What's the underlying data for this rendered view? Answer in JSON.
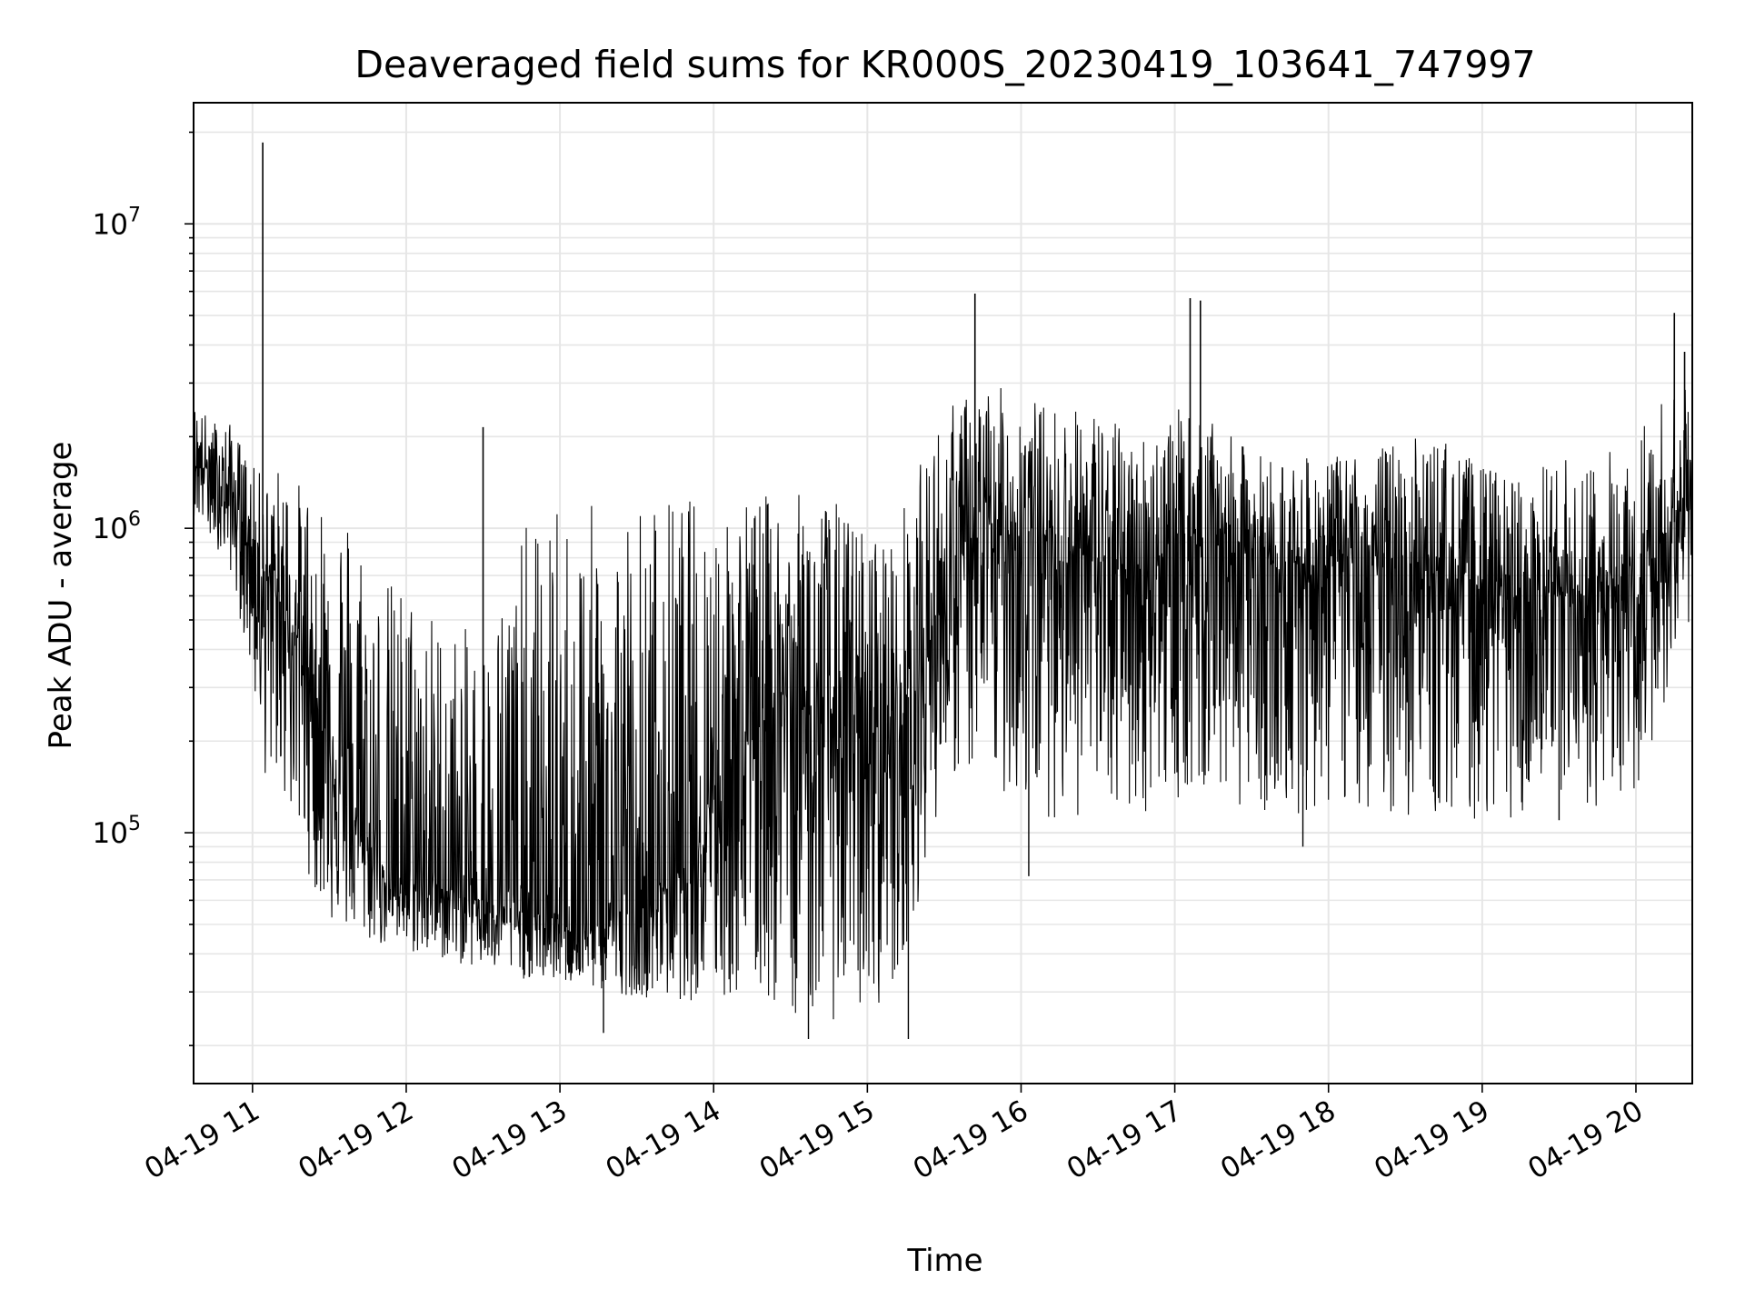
{
  "chart_data": {
    "type": "line",
    "title": "Deaveraged field sums for KR000S_20230419_103641_747997",
    "xlabel": "Time",
    "ylabel": "Peak ADU - average",
    "y_scale": "log",
    "grid": true,
    "grid_color": "#e6e6e6",
    "line_color": "#000000",
    "xlim": [
      "2023-04-19 10:37",
      "2023-04-19 20:22"
    ],
    "ylim": [
      15000,
      25000000
    ],
    "x_ticks": [
      {
        "time": "2023-04-19 11:00",
        "label": "04-19 11"
      },
      {
        "time": "2023-04-19 12:00",
        "label": "04-19 12"
      },
      {
        "time": "2023-04-19 13:00",
        "label": "04-19 13"
      },
      {
        "time": "2023-04-19 14:00",
        "label": "04-19 14"
      },
      {
        "time": "2023-04-19 15:00",
        "label": "04-19 15"
      },
      {
        "time": "2023-04-19 16:00",
        "label": "04-19 16"
      },
      {
        "time": "2023-04-19 17:00",
        "label": "04-19 17"
      },
      {
        "time": "2023-04-19 18:00",
        "label": "04-19 18"
      },
      {
        "time": "2023-04-19 19:00",
        "label": "04-19 19"
      },
      {
        "time": "2023-04-19 20:00",
        "label": "04-19 20"
      }
    ],
    "y_ticks": [
      {
        "value": 100000,
        "base": "10",
        "exponent": "5"
      },
      {
        "value": 1000000,
        "base": "10",
        "exponent": "6"
      },
      {
        "value": 10000000,
        "base": "10",
        "exponent": "7"
      }
    ],
    "series": [
      {
        "x": [
          "2023-04-19 10:37",
          "2023-04-19 10:45",
          "2023-04-19 10:52",
          "2023-04-19 11:00",
          "2023-04-19 11:05",
          "2023-04-19 11:10",
          "2023-04-19 11:20",
          "2023-04-19 11:30",
          "2023-04-19 11:40",
          "2023-04-19 11:50",
          "2023-04-19 12:00",
          "2023-04-19 12:15",
          "2023-04-19 12:30",
          "2023-04-19 12:45",
          "2023-04-19 13:00",
          "2023-04-19 13:15",
          "2023-04-19 13:30",
          "2023-04-19 13:45",
          "2023-04-19 14:00",
          "2023-04-19 14:15",
          "2023-04-19 14:30",
          "2023-04-19 14:45",
          "2023-04-19 15:00",
          "2023-04-19 15:10",
          "2023-04-19 15:20",
          "2023-04-19 15:30",
          "2023-04-19 15:45",
          "2023-04-19 16:00",
          "2023-04-19 16:15",
          "2023-04-19 16:30",
          "2023-04-19 16:45",
          "2023-04-19 17:00",
          "2023-04-19 17:15",
          "2023-04-19 17:30",
          "2023-04-19 17:45",
          "2023-04-19 18:00",
          "2023-04-19 18:15",
          "2023-04-19 18:30",
          "2023-04-19 18:45",
          "2023-04-19 19:00",
          "2023-04-19 19:15",
          "2023-04-19 19:30",
          "2023-04-19 19:45",
          "2023-04-19 20:00",
          "2023-04-19 20:10",
          "2023-04-19 20:22"
        ],
        "center": [
          1700000,
          1500000,
          1300000,
          900000,
          700000,
          600000,
          400000,
          200000,
          110000,
          80000,
          70000,
          65000,
          60000,
          55000,
          52000,
          50000,
          60000,
          70000,
          150000,
          250000,
          280000,
          250000,
          200000,
          250000,
          300000,
          700000,
          900000,
          1000000,
          900000,
          800000,
          700000,
          900000,
          1000000,
          850000,
          750000,
          800000,
          800000,
          750000,
          700000,
          650000,
          600000,
          600000,
          550000,
          600000,
          900000,
          1300000
        ],
        "low": [
          1100000,
          900000,
          700000,
          300000,
          150000,
          150000,
          80000,
          50000,
          45000,
          42000,
          40000,
          38000,
          35000,
          33000,
          32000,
          30000,
          29000,
          28000,
          28000,
          27000,
          25000,
          24000,
          25000,
          30000,
          60000,
          150000,
          150000,
          120000,
          110000,
          110000,
          110000,
          130000,
          130000,
          120000,
          110000,
          120000,
          120000,
          110000,
          110000,
          110000,
          110000,
          110000,
          120000,
          130000,
          250000,
          500000
        ],
        "high": [
          2600000,
          2300000,
          2200000,
          1600000,
          1500000,
          1600000,
          1400000,
          1400000,
          1200000,
          700000,
          700000,
          500000,
          450000,
          1000000,
          1200000,
          1200000,
          1300000,
          1300000,
          1300000,
          1300000,
          1300000,
          1300000,
          1000000,
          1000000,
          1600000,
          2500000,
          3000000,
          2800000,
          2500000,
          2500000,
          2000000,
          2500000,
          2200000,
          1800000,
          1700000,
          1700000,
          1800000,
          2000000,
          2000000,
          1600000,
          1500000,
          1700000,
          1700000,
          2200000,
          2700000,
          3000000
        ]
      }
    ],
    "spikes": [
      {
        "x": "2023-04-19 11:04",
        "y": 18500000
      },
      {
        "x": "2023-04-19 12:30",
        "y": 2150000
      },
      {
        "x": "2023-04-19 15:42",
        "y": 5900000
      },
      {
        "x": "2023-04-19 17:06",
        "y": 5700000
      },
      {
        "x": "2023-04-19 17:10",
        "y": 5600000
      },
      {
        "x": "2023-04-19 20:15",
        "y": 5100000
      },
      {
        "x": "2023-04-19 20:19",
        "y": 3800000
      }
    ],
    "dips": [
      {
        "x": "2023-04-19 13:17",
        "y": 22000.0
      },
      {
        "x": "2023-04-19 14:37",
        "y": 21000
      },
      {
        "x": "2023-04-19 15:16",
        "y": 21000
      },
      {
        "x": "2023-04-19 16:03",
        "y": 72000
      },
      {
        "x": "2023-04-19 17:50",
        "y": 90000
      },
      {
        "x": "2023-04-19 19:30",
        "y": 110000
      }
    ]
  }
}
